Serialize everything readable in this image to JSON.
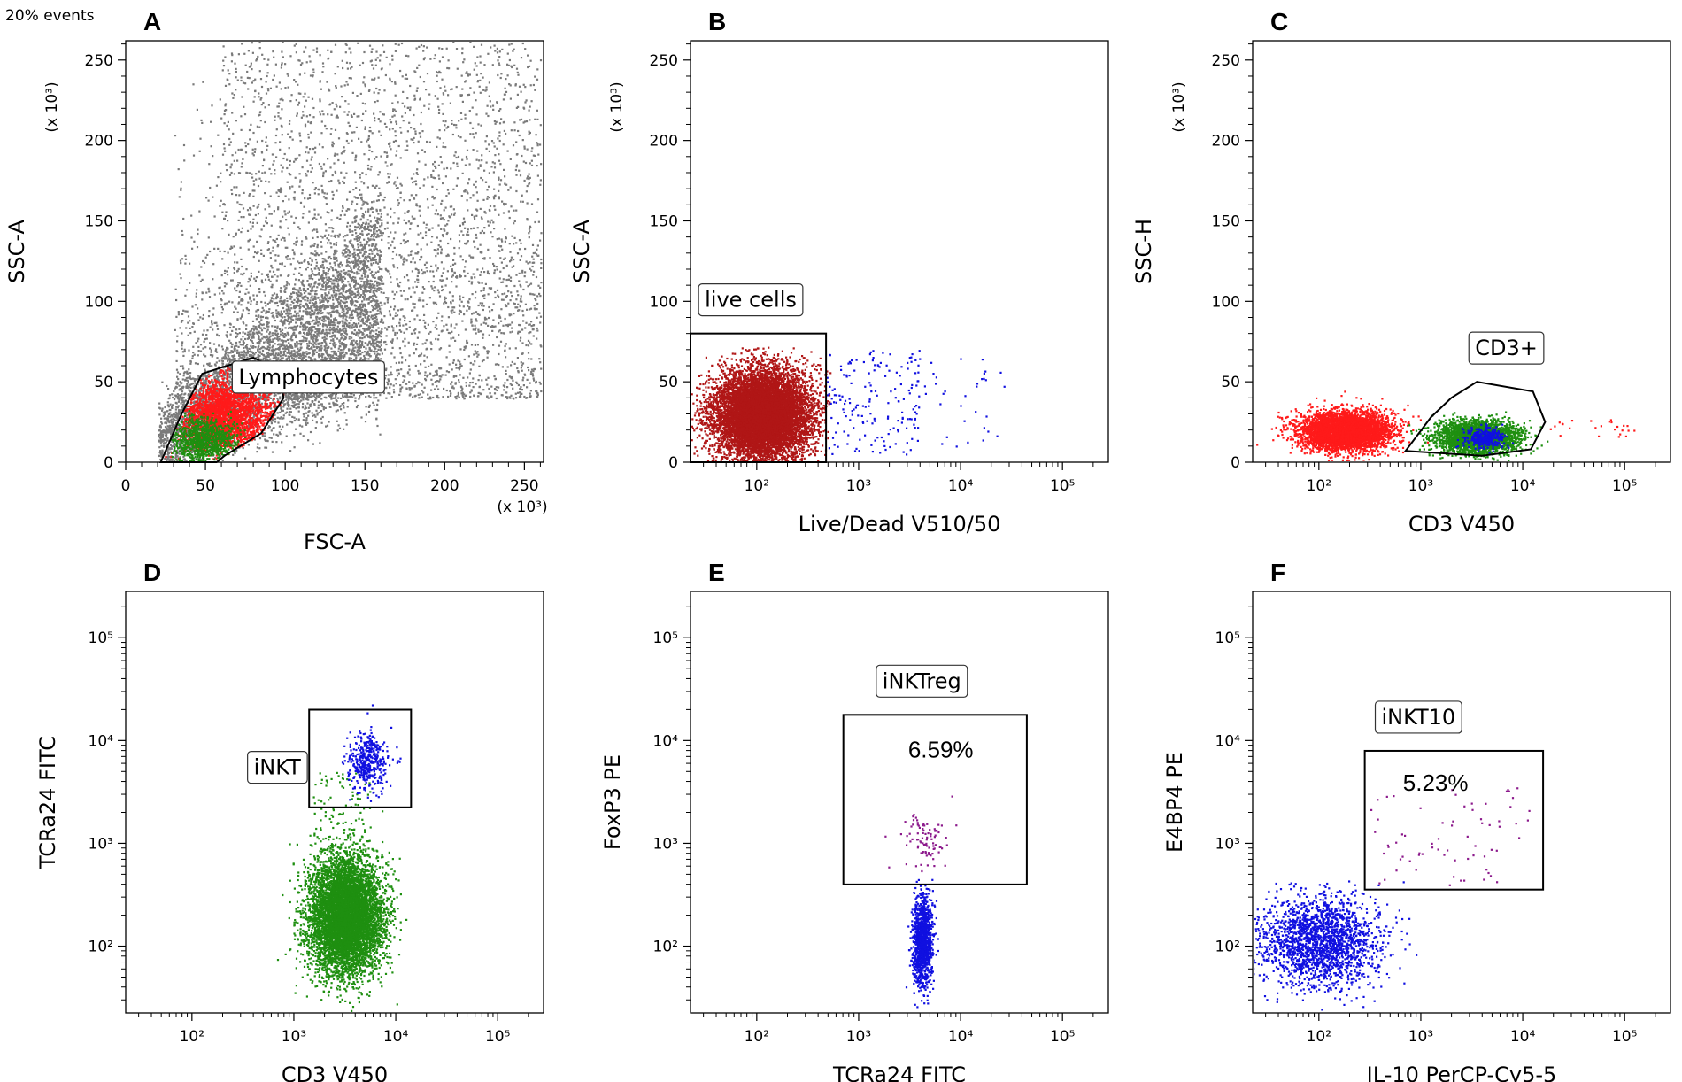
{
  "figure": {
    "events_note": "20% events"
  },
  "colors": {
    "gray": "#7a7a7a",
    "red": "#ff1a1a",
    "darkred": "#b01616",
    "green": "#1e8f10",
    "blue": "#1010e0",
    "purple": "#8c1a8c",
    "gate": "#000000"
  },
  "chart_data": [
    {
      "id": "A",
      "type": "scatter",
      "letter": "A",
      "xlabel": "FSC-A",
      "ylabel": "SSC-A",
      "x_scale": "linear",
      "xlim": [
        0,
        262
      ],
      "ylim": [
        0,
        262
      ],
      "x_ticks": [
        0,
        50,
        100,
        150,
        200,
        250
      ],
      "x_tick_labels": [
        "0",
        "50",
        "100",
        "150",
        "200",
        "250"
      ],
      "y_ticks": [
        0,
        50,
        100,
        150,
        200,
        250
      ],
      "y_tick_labels": [
        "0",
        "50",
        "100",
        "150",
        "200",
        "250"
      ],
      "x_multiplier": "(x 10³)",
      "y_multiplier": "(x 10³)",
      "gate": {
        "label": "Lymphocytes",
        "shape": "polygon",
        "points": [
          [
            22,
            0
          ],
          [
            35,
            30
          ],
          [
            48,
            55
          ],
          [
            70,
            62
          ],
          [
            80,
            65
          ],
          [
            96,
            57
          ],
          [
            99,
            40
          ],
          [
            85,
            18
          ],
          [
            62,
            4
          ],
          [
            57,
            0
          ]
        ]
      },
      "populations": [
        {
          "name": "all events",
          "color": "gray",
          "n": 9000,
          "kind": "fsc_ssc"
        },
        {
          "name": "lymphocyte gate",
          "color": "red",
          "n": 2600,
          "kind": "gauss",
          "mx": 62,
          "sx": 14,
          "my": 30,
          "sy": 11,
          "clipGate": true
        },
        {
          "name": "sub-population",
          "color": "green",
          "n": 900,
          "kind": "gauss",
          "mx": 48,
          "sx": 10,
          "my": 14,
          "sy": 7,
          "clipGate": true
        }
      ]
    },
    {
      "id": "B",
      "type": "scatter",
      "letter": "B",
      "xlabel": "Live/Dead V510/50",
      "ylabel": "SSC-A",
      "x_scale": "log",
      "xlim": [
        1.35,
        5.45
      ],
      "ylim": [
        0,
        262
      ],
      "x_ticks": [
        2,
        3,
        4,
        5
      ],
      "x_tick_labels": [
        "10²",
        "10³",
        "10⁴",
        "10⁵"
      ],
      "y_ticks": [
        0,
        50,
        100,
        150,
        200,
        250
      ],
      "y_tick_labels": [
        "0",
        "50",
        "100",
        "150",
        "200",
        "250"
      ],
      "y_multiplier": "(x 10³)",
      "gate": {
        "label": "live cells",
        "shape": "rect",
        "x0": 1.35,
        "x1": 2.68,
        "y0": 0,
        "y1": 80
      },
      "populations": [
        {
          "name": "live cells",
          "color": "darkred",
          "n": 9000,
          "kind": "gauss",
          "mx": 2.05,
          "sx": 0.24,
          "my": 30,
          "sy": 14,
          "clip": [
            1.35,
            2.72,
            0,
            72
          ]
        },
        {
          "name": "dead cells",
          "color": "blue",
          "n": 170,
          "kind": "uniform",
          "x": [
            2.68,
            3.6
          ],
          "y": [
            5,
            70
          ]
        },
        {
          "name": "dead cells (sparse)",
          "color": "blue",
          "n": 40,
          "kind": "uniform",
          "x": [
            3.5,
            4.5
          ],
          "y": [
            10,
            65
          ]
        }
      ]
    },
    {
      "id": "C",
      "type": "scatter",
      "letter": "C",
      "xlabel": "CD3 V450",
      "ylabel": "SSC-H",
      "x_scale": "log",
      "xlim": [
        1.35,
        5.45
      ],
      "ylim": [
        0,
        262
      ],
      "x_ticks": [
        2,
        3,
        4,
        5
      ],
      "x_tick_labels": [
        "10²",
        "10³",
        "10⁴",
        "10⁵"
      ],
      "y_ticks": [
        0,
        50,
        100,
        150,
        200,
        250
      ],
      "y_tick_labels": [
        "0",
        "50",
        "100",
        "150",
        "200",
        "250"
      ],
      "y_multiplier": "(x 10³)",
      "gate": {
        "label": "CD3+",
        "shape": "polygon",
        "points": [
          [
            2.85,
            7
          ],
          [
            3.1,
            28
          ],
          [
            3.3,
            40
          ],
          [
            3.55,
            50
          ],
          [
            4.1,
            44
          ],
          [
            4.22,
            25
          ],
          [
            4.08,
            8
          ],
          [
            3.6,
            4
          ]
        ]
      },
      "populations": [
        {
          "name": "CD3- cells",
          "color": "red",
          "n": 4500,
          "kind": "gauss",
          "mx": 2.25,
          "sx": 0.22,
          "my": 20,
          "sy": 6
        },
        {
          "name": "CD3- sparse",
          "color": "red",
          "n": 25,
          "kind": "uniform",
          "x": [
            4.2,
            5.1
          ],
          "y": [
            16,
            27
          ]
        },
        {
          "name": "CD3+ cells",
          "color": "green",
          "n": 2800,
          "kind": "gauss",
          "mx": 3.55,
          "sx": 0.2,
          "my": 16,
          "sy": 5
        },
        {
          "name": "iNKT within CD3+",
          "color": "blue",
          "n": 400,
          "kind": "gauss",
          "mx": 3.62,
          "sx": 0.09,
          "my": 16,
          "sy": 3
        }
      ]
    },
    {
      "id": "D",
      "type": "scatter",
      "letter": "D",
      "xlabel": "CD3 V450",
      "ylabel": "TCRa24 FITC",
      "x_scale": "log",
      "y_scale": "log",
      "xlim": [
        1.35,
        5.45
      ],
      "ylim": [
        1.35,
        5.45
      ],
      "x_ticks": [
        2,
        3,
        4,
        5
      ],
      "x_tick_labels": [
        "10²",
        "10³",
        "10⁴",
        "10⁵"
      ],
      "y_ticks": [
        2,
        3,
        4,
        5
      ],
      "y_tick_labels": [
        "10²",
        "10³",
        "10⁴",
        "10⁵"
      ],
      "gate": {
        "label": "iNKT",
        "label_side": "left",
        "shape": "rect",
        "x0": 3.15,
        "x1": 4.15,
        "y0": 3.35,
        "y1": 4.3
      },
      "populations": [
        {
          "name": "conventional T cells",
          "color": "green",
          "n": 7000,
          "kind": "gauss",
          "mx": 3.5,
          "sx": 0.18,
          "my": 2.3,
          "sy": 0.28
        },
        {
          "name": "bridge",
          "color": "green",
          "n": 120,
          "kind": "uniform",
          "x": [
            3.15,
            3.75
          ],
          "y": [
            2.7,
            3.7
          ]
        },
        {
          "name": "iNKT cells",
          "color": "blue",
          "n": 420,
          "kind": "gauss",
          "mx": 3.72,
          "sx": 0.1,
          "my": 3.8,
          "sy": 0.14
        }
      ]
    },
    {
      "id": "E",
      "type": "scatter",
      "letter": "E",
      "xlabel": "TCRa24 FITC",
      "ylabel": "FoxP3 PE",
      "x_scale": "log",
      "y_scale": "log",
      "xlim": [
        1.35,
        5.45
      ],
      "ylim": [
        1.35,
        5.45
      ],
      "x_ticks": [
        2,
        3,
        4,
        5
      ],
      "x_tick_labels": [
        "10²",
        "10³",
        "10⁴",
        "10⁵"
      ],
      "y_ticks": [
        2,
        3,
        4,
        5
      ],
      "y_tick_labels": [
        "10²",
        "10³",
        "10⁴",
        "10⁵"
      ],
      "gate": {
        "label": "iNKTreg",
        "percent": "6.59%",
        "shape": "rect",
        "x0": 2.85,
        "x1": 4.65,
        "y0": 2.6,
        "y1": 4.25
      },
      "populations": [
        {
          "name": "FoxP3- iNKT",
          "color": "blue",
          "n": 1200,
          "kind": "gauss",
          "mx": 3.62,
          "sx": 0.05,
          "my": 2.05,
          "sy": 0.22
        },
        {
          "name": "iNKTreg",
          "color": "purple",
          "n": 90,
          "kind": "gauss",
          "mx": 3.62,
          "sx": 0.12,
          "my": 3.05,
          "sy": 0.15
        }
      ]
    },
    {
      "id": "F",
      "type": "scatter",
      "letter": "F",
      "xlabel": "IL-10 PerCP-Cy5-5",
      "ylabel": "E4BP4 PE",
      "x_scale": "log",
      "y_scale": "log",
      "xlim": [
        1.35,
        5.45
      ],
      "ylim": [
        1.35,
        5.45
      ],
      "x_ticks": [
        2,
        3,
        4,
        5
      ],
      "x_tick_labels": [
        "10²",
        "10³",
        "10⁴",
        "10⁵"
      ],
      "y_ticks": [
        2,
        3,
        4,
        5
      ],
      "y_tick_labels": [
        "10²",
        "10³",
        "10⁴",
        "10⁵"
      ],
      "gate": {
        "label": "iNKT10",
        "percent": "5.23%",
        "shape": "rect",
        "x0": 2.45,
        "x1": 4.2,
        "y0": 2.55,
        "y1": 3.9
      },
      "populations": [
        {
          "name": "IL-10- iNKT",
          "color": "blue",
          "n": 2000,
          "kind": "gauss",
          "mx": 2.0,
          "sx": 0.3,
          "my": 2.05,
          "sy": 0.22,
          "clip": [
            1.35,
            2.95,
            1.35,
            2.65
          ]
        },
        {
          "name": "iNKT10",
          "color": "purple",
          "n": 70,
          "kind": "uniform",
          "x": [
            2.5,
            4.15
          ],
          "y": [
            2.6,
            3.55
          ]
        }
      ]
    }
  ]
}
